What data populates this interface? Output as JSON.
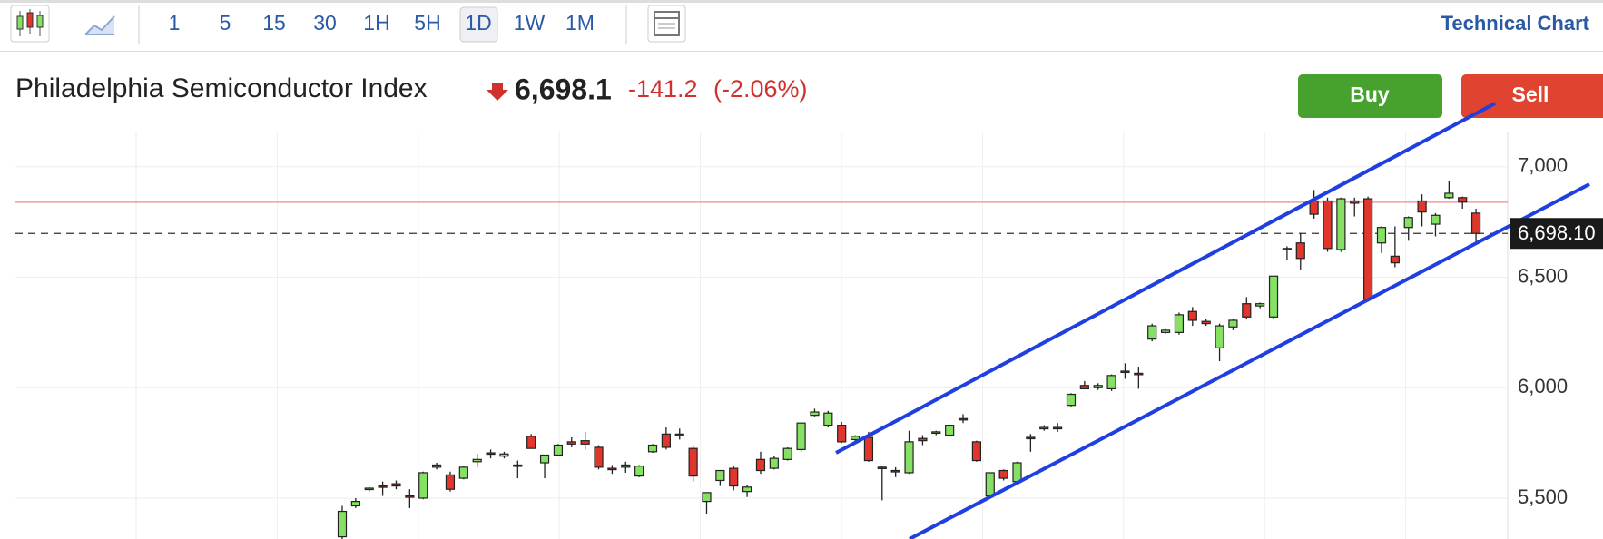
{
  "toolbar": {
    "intervals": [
      "1",
      "5",
      "15",
      "30",
      "1H",
      "5H",
      "1D",
      "1W",
      "1M"
    ],
    "link": "Technical Chart"
  },
  "quote": {
    "name": "Philadelphia Semiconductor Index",
    "price": "6,698.1",
    "change": "-141.2",
    "change_pct": "(-2.06%)"
  },
  "actions": [
    "Buy",
    "Sell"
  ],
  "chart_data": {
    "type": "candlestick",
    "open": [
      5325,
      5465,
      5540,
      5555,
      5565,
      5510,
      5500,
      5640,
      5605,
      5590,
      5665,
      5705,
      5690,
      5650,
      5780,
      5660,
      5695,
      5755,
      5760,
      5730,
      5635,
      5640,
      5600,
      5710,
      5790,
      5790,
      5725,
      5485,
      5580,
      5635,
      5530,
      5675,
      5635,
      5675,
      5720,
      5875,
      5830,
      5830,
      5765,
      5775,
      5640,
      5625,
      5615,
      5770,
      5795,
      5785,
      5860,
      5755,
      5510,
      5625,
      5575,
      5775,
      5815,
      5820,
      5920,
      6010,
      6000,
      5995,
      6075,
      6065,
      6220,
      6250,
      6250,
      6345,
      6300,
      6180,
      6275,
      6380,
      6370,
      6320,
      6630,
      6655,
      6845,
      6845,
      6625,
      6845,
      6855,
      6655,
      6595,
      6725,
      6845,
      6740,
      6860,
      6860,
      6790
    ],
    "high": [
      5465,
      5500,
      5550,
      5575,
      5580,
      5540,
      5620,
      5660,
      5620,
      5645,
      5700,
      5720,
      5710,
      5670,
      5790,
      5680,
      5745,
      5775,
      5800,
      5740,
      5650,
      5665,
      5650,
      5745,
      5820,
      5815,
      5740,
      5525,
      5625,
      5645,
      5560,
      5710,
      5690,
      5730,
      5840,
      5905,
      5895,
      5845,
      5785,
      5800,
      5645,
      5640,
      5805,
      5785,
      5805,
      5830,
      5880,
      5760,
      5615,
      5630,
      5665,
      5790,
      5830,
      5840,
      5975,
      6030,
      6020,
      6060,
      6110,
      6095,
      6290,
      6265,
      6340,
      6365,
      6310,
      6290,
      6310,
      6410,
      6385,
      6505,
      6640,
      6700,
      6895,
      6860,
      6860,
      6860,
      6865,
      6730,
      6730,
      6775,
      6875,
      6790,
      6935,
      6865,
      6810
    ],
    "low": [
      5300,
      5455,
      5530,
      5510,
      5540,
      5455,
      5495,
      5630,
      5530,
      5585,
      5640,
      5680,
      5680,
      5590,
      5725,
      5590,
      5690,
      5730,
      5720,
      5630,
      5610,
      5615,
      5595,
      5705,
      5720,
      5765,
      5575,
      5430,
      5555,
      5535,
      5505,
      5610,
      5630,
      5670,
      5710,
      5870,
      5820,
      5750,
      5760,
      5665,
      5490,
      5595,
      5610,
      5740,
      5785,
      5780,
      5840,
      5665,
      5505,
      5580,
      5570,
      5710,
      5805,
      5800,
      5915,
      5995,
      5990,
      5985,
      6040,
      5995,
      6210,
      6245,
      6240,
      6280,
      6280,
      6120,
      6260,
      6310,
      6360,
      6310,
      6580,
      6535,
      6765,
      6615,
      6615,
      6775,
      6395,
      6610,
      6545,
      6665,
      6730,
      6685,
      6855,
      6810,
      6660
    ],
    "close": [
      5440,
      5485,
      5545,
      5550,
      5555,
      5505,
      5615,
      5650,
      5540,
      5640,
      5675,
      5700,
      5700,
      5645,
      5725,
      5695,
      5740,
      5745,
      5745,
      5640,
      5630,
      5650,
      5645,
      5740,
      5730,
      5785,
      5600,
      5525,
      5625,
      5555,
      5550,
      5625,
      5680,
      5725,
      5840,
      5890,
      5885,
      5755,
      5780,
      5670,
      5635,
      5620,
      5755,
      5760,
      5800,
      5830,
      5855,
      5670,
      5615,
      5590,
      5660,
      5770,
      5820,
      5815,
      5970,
      5995,
      6010,
      6055,
      6070,
      6060,
      6280,
      6260,
      6330,
      6305,
      6290,
      6280,
      6305,
      6320,
      6380,
      6505,
      6625,
      6585,
      6785,
      6630,
      6855,
      6835,
      6400,
      6725,
      6565,
      6770,
      6795,
      6780,
      6880,
      6840,
      6698.1
    ],
    "up_color": "#86e064",
    "down_color": "#e0362c",
    "ylim": [
      5315,
      7155
    ],
    "yticks": [
      {
        "value": 5500,
        "label": "5,500"
      },
      {
        "value": 6000,
        "label": "6,000"
      },
      {
        "value": 6500,
        "label": "6,500"
      },
      {
        "value": 7000,
        "label": "7,000"
      }
    ],
    "grid": true,
    "prev_close": 6839.3,
    "last_price": {
      "value": 6698.1,
      "label": "6,698.10"
    }
  }
}
